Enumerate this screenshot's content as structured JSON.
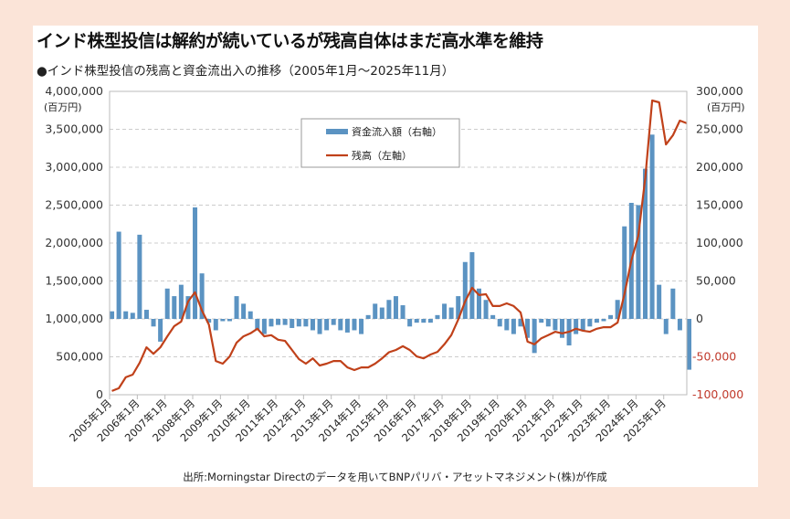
{
  "title": "インド株型投信は解約が続いているが残高自体はまだ高水準を維持",
  "subtitle": "●インド株型投信の残高と資金流出入の推移（2005年1月～2025年11月）",
  "source": "出所:Morningstar Directのデータを用いてBNPパリバ・アセットマネジメント(株)が作成",
  "chart_data": {
    "type": "bar+line",
    "left_axis": {
      "unit": "(百万円)",
      "range": [
        0,
        4000000
      ],
      "ticks": [
        "4,000,000",
        "3,500,000",
        "3,000,000",
        "2,500,000",
        "2,000,000",
        "1,500,000",
        "1,000,000",
        "500,000",
        "0"
      ]
    },
    "right_axis": {
      "unit": "(百万円)",
      "range": [
        -100000,
        300000
      ],
      "ticks": [
        "300,000",
        "250,000",
        "200,000",
        "150,000",
        "100,000",
        "50,000",
        "0",
        "-50,000",
        "-100,000"
      ],
      "color": "#c0392b"
    },
    "x_ticks": [
      "2005年1月",
      "2006年1月",
      "2007年1月",
      "2008年1月",
      "2009年1月",
      "2010年1月",
      "2011年1月",
      "2012年1月",
      "2013年1月",
      "2014年1月",
      "2015年1月",
      "2016年1月",
      "2017年1月",
      "2018年1月",
      "2019年1月",
      "2020年1月",
      "2021年1月",
      "2022年1月",
      "2023年1月",
      "2024年1月",
      "2025年1月"
    ],
    "grid": "horizontal dashed",
    "legend": "top-center",
    "x": [
      "2005-01",
      "2005-04",
      "2005-07",
      "2005-10",
      "2006-01",
      "2006-04",
      "2006-07",
      "2006-10",
      "2007-01",
      "2007-04",
      "2007-07",
      "2007-10",
      "2008-01",
      "2008-04",
      "2008-07",
      "2008-10",
      "2009-01",
      "2009-04",
      "2009-07",
      "2009-10",
      "2010-01",
      "2010-04",
      "2010-07",
      "2010-10",
      "2011-01",
      "2011-04",
      "2011-07",
      "2011-10",
      "2012-01",
      "2012-04",
      "2012-07",
      "2012-10",
      "2013-01",
      "2013-04",
      "2013-07",
      "2013-10",
      "2014-01",
      "2014-04",
      "2014-07",
      "2014-10",
      "2015-01",
      "2015-04",
      "2015-07",
      "2015-10",
      "2016-01",
      "2016-04",
      "2016-07",
      "2016-10",
      "2017-01",
      "2017-04",
      "2017-07",
      "2017-10",
      "2018-01",
      "2018-04",
      "2018-07",
      "2018-10",
      "2019-01",
      "2019-04",
      "2019-07",
      "2019-10",
      "2020-01",
      "2020-04",
      "2020-07",
      "2020-10",
      "2021-01",
      "2021-04",
      "2021-07",
      "2021-10",
      "2022-01",
      "2022-04",
      "2022-07",
      "2022-10",
      "2023-01",
      "2023-04",
      "2023-07",
      "2023-10",
      "2024-01",
      "2024-04",
      "2024-07",
      "2024-10",
      "2025-01",
      "2025-04",
      "2025-07",
      "2025-11"
    ],
    "series": [
      {
        "name": "資金流入額（右軸）",
        "type": "bar",
        "axis": "right",
        "color": "#5b93c2",
        "values": [
          10000,
          115000,
          10000,
          8000,
          111000,
          12000,
          -10000,
          -30000,
          40000,
          30000,
          45000,
          30000,
          147000,
          60000,
          -5000,
          -15000,
          -3000,
          -3000,
          30000,
          20000,
          10000,
          -15000,
          -20000,
          -10000,
          -8000,
          -8000,
          -12000,
          -10000,
          -10000,
          -15000,
          -20000,
          -15000,
          -8000,
          -15000,
          -18000,
          -15000,
          -20000,
          5000,
          20000,
          15000,
          25000,
          30000,
          18000,
          -10000,
          -5000,
          -5000,
          -5000,
          5000,
          20000,
          15000,
          30000,
          75000,
          88000,
          40000,
          25000,
          5000,
          -10000,
          -15000,
          -20000,
          -10000,
          -25000,
          -45000,
          -5000,
          -10000,
          -15000,
          -25000,
          -35000,
          -20000,
          -15000,
          -10000,
          -5000,
          -3000,
          5000,
          25000,
          122000,
          153000,
          150000,
          198000,
          243000,
          45000,
          -20000,
          40000,
          -15000,
          -67000
        ]
      },
      {
        "name": "残高（左軸）",
        "type": "line",
        "axis": "left",
        "color": "#c0411a",
        "values": [
          50000,
          85000,
          230000,
          265000,
          420000,
          625000,
          540000,
          625000,
          770000,
          905000,
          965000,
          1230000,
          1350000,
          1110000,
          925000,
          445000,
          410000,
          505000,
          685000,
          770000,
          810000,
          870000,
          770000,
          785000,
          725000,
          710000,
          590000,
          470000,
          410000,
          480000,
          385000,
          410000,
          445000,
          445000,
          360000,
          325000,
          360000,
          360000,
          410000,
          480000,
          560000,
          590000,
          640000,
          590000,
          505000,
          480000,
          530000,
          565000,
          665000,
          785000,
          990000,
          1230000,
          1410000,
          1315000,
          1325000,
          1170000,
          1170000,
          1205000,
          1170000,
          1085000,
          700000,
          665000,
          745000,
          785000,
          830000,
          810000,
          830000,
          870000,
          845000,
          830000,
          870000,
          890000,
          890000,
          950000,
          1325000,
          1770000,
          2095000,
          2855000,
          3880000,
          3855000,
          3300000,
          3420000,
          3615000,
          3580000
        ]
      }
    ]
  }
}
